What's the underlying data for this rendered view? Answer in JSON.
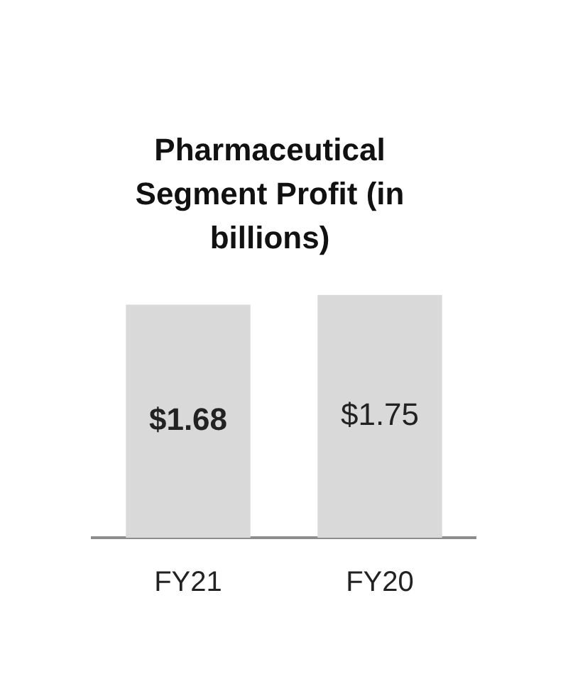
{
  "chart_data": {
    "type": "bar",
    "title": "Pharmaceutical Segment Profit (in billions)",
    "categories": [
      "FY21",
      "FY20"
    ],
    "values": [
      1.68,
      1.75
    ],
    "color": "#d9d9d9",
    "value_labels": [
      "$1.68",
      "$1.75"
    ],
    "grid": false,
    "legend": false
  }
}
